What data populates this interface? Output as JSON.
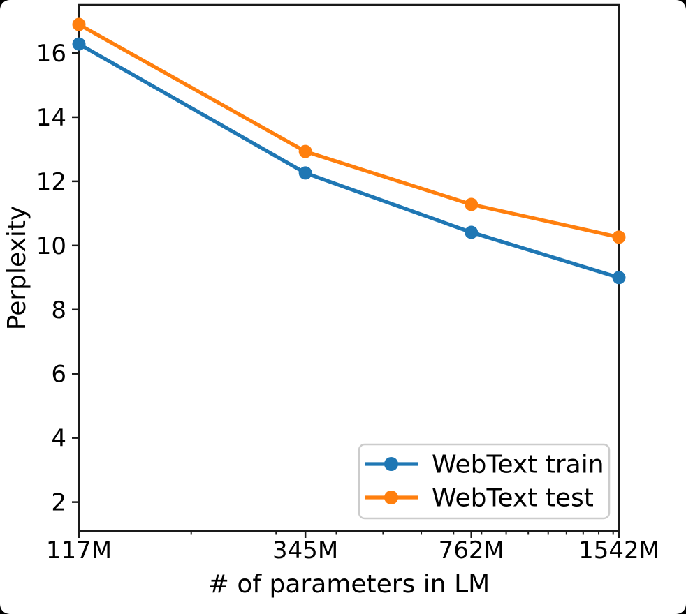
{
  "figure": {
    "background": "#ffffff",
    "outside_background": "#000000"
  },
  "chart_data": {
    "type": "line",
    "title": "",
    "xlabel": "# of parameters in LM",
    "ylabel": "Perplexity",
    "x_scale": "log",
    "grid": false,
    "legend_position": "lower right",
    "x": [
      117,
      345,
      762,
      1542
    ],
    "x_tick_labels": [
      "117M",
      "345M",
      "762M",
      "1542M"
    ],
    "x_minor_ticks": [
      200,
      300,
      400,
      500,
      600,
      700,
      800,
      900,
      1000,
      1100,
      1200,
      1300,
      1400,
      1500
    ],
    "xlim": [
      117,
      1542
    ],
    "ylim": [
      1.1,
      17.5
    ],
    "y_ticks": [
      2,
      4,
      6,
      8,
      10,
      12,
      14,
      16
    ],
    "series": [
      {
        "name": "WebText train",
        "color": "#1f77b4",
        "marker": "circle",
        "values": [
          16.28,
          12.26,
          10.41,
          9.0
        ]
      },
      {
        "name": "WebText test",
        "color": "#ff7f0e",
        "marker": "circle",
        "values": [
          16.89,
          12.93,
          11.28,
          10.26
        ]
      }
    ],
    "axis_color": "#1a1a1a",
    "legend_border_color": "#cccccc"
  }
}
